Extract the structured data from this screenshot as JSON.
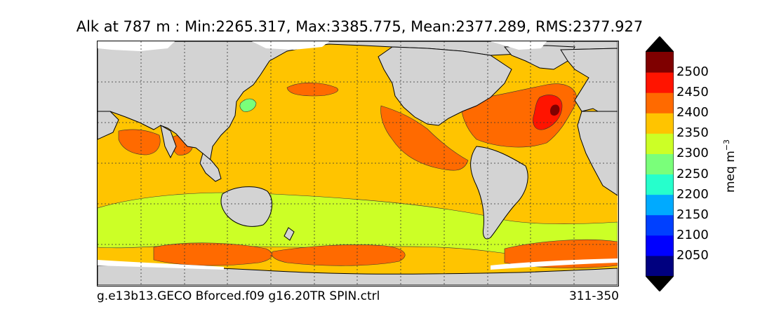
{
  "title": "Alk at 787 m : Min:2265.317, Max:3385.775, Mean:2377.289, RMS:2377.927",
  "footer": {
    "run_name": "g.e13b13.GECO Bforced.f09 g16.20TR SPIN.ctrl",
    "period": "311-350"
  },
  "colorbar": {
    "unit_label": "meq m",
    "unit_exponent": "−3",
    "levels": [
      {
        "label": "",
        "color": "#00007f"
      },
      {
        "label": "2050",
        "color": "#0000ff"
      },
      {
        "label": "2100",
        "color": "#0040ff"
      },
      {
        "label": "2150",
        "color": "#00aaff"
      },
      {
        "label": "2200",
        "color": "#26ffcc"
      },
      {
        "label": "2250",
        "color": "#7aff7a"
      },
      {
        "label": "2300",
        "color": "#ccff26"
      },
      {
        "label": "2350",
        "color": "#ffc400"
      },
      {
        "label": "2400",
        "color": "#ff6a00"
      },
      {
        "label": "2450",
        "color": "#ff1400"
      },
      {
        "label": "2500",
        "color": "#7f0000"
      }
    ],
    "extend": "both"
  },
  "map": {
    "land_color": "#d3d3d3",
    "ice_color": "#ffffff",
    "gridlines": "dotted"
  }
}
